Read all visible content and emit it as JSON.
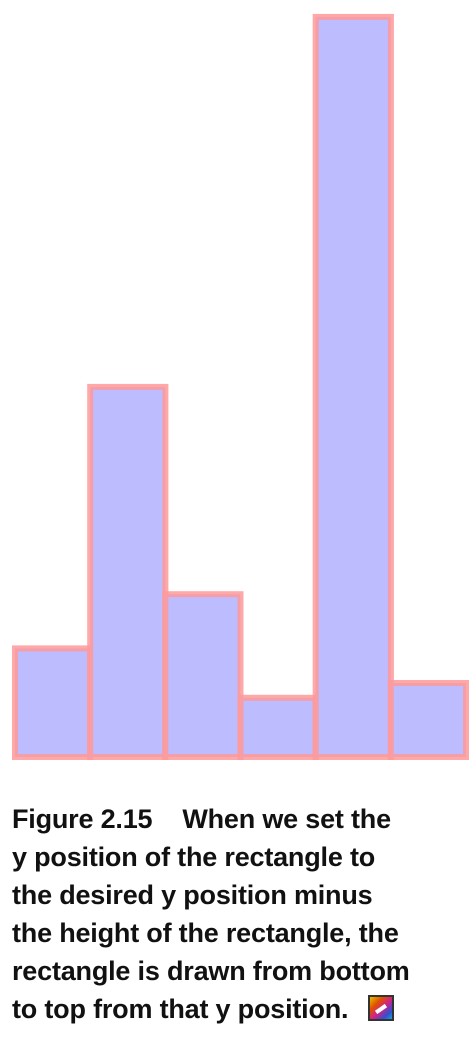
{
  "chart_data": {
    "type": "bar",
    "categories": [
      "",
      "",
      "",
      "",
      "",
      ""
    ],
    "values": [
      110,
      375,
      165,
      60,
      750,
      75
    ],
    "ylim": [
      0,
      760
    ],
    "grid": false,
    "legend": "none",
    "bar_fill": "#bcbcff",
    "bar_border": "#ff9999"
  },
  "caption": {
    "label": "Figure 2.15",
    "lines": [
      "When we set the",
      "y position of the rectangle to",
      "the desired y position minus",
      "the height of the rectangle, the",
      "rectangle is drawn from bottom",
      "to top from that y position."
    ]
  },
  "icons": {
    "figure_icon": "figure-image-icon"
  }
}
